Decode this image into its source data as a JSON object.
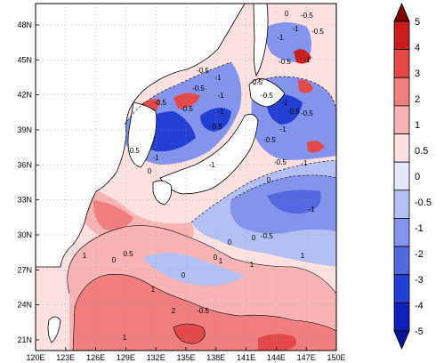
{
  "map": {
    "x_ticks": [
      "120E",
      "123E",
      "126E",
      "129E",
      "132E",
      "135E",
      "138E",
      "141E",
      "144E",
      "147E",
      "150E"
    ],
    "y_ticks": [
      "21N",
      "24N",
      "27N",
      "30N",
      "33N",
      "36N",
      "39N",
      "42N",
      "45N",
      "48N"
    ],
    "colorbar": {
      "levels": [
        "5",
        "4",
        "3",
        "2",
        "1",
        "0.5",
        "0",
        "-0.5",
        "-1",
        "-2",
        "-3",
        "-4",
        "-5"
      ],
      "colors": [
        "#800000",
        "#c81e1e",
        "#e44848",
        "#f07e7e",
        "#f8b4b4",
        "#fde0e0",
        "#e4e8fc",
        "#b4c0f4",
        "#8494ec",
        "#5468e0",
        "#2440d4",
        "#1020b8",
        "#0a1496"
      ]
    },
    "contour_labels": [
      {
        "text": "0"
      },
      {
        "text": "-0.5"
      },
      {
        "text": "-1"
      },
      {
        "text": "-0.5"
      },
      {
        "text": "-1"
      },
      {
        "text": "-0.5"
      },
      {
        "text": "-1"
      },
      {
        "text": "-0.5"
      },
      {
        "text": "-1"
      },
      {
        "text": "-0.5"
      },
      {
        "text": "-0.5"
      },
      {
        "text": "-1"
      },
      {
        "text": "-0.5"
      },
      {
        "text": "-0.5"
      },
      {
        "text": "-1"
      },
      {
        "text": "-0.5"
      },
      {
        "text": "-1"
      },
      {
        "text": "-0.5"
      },
      {
        "text": "-0.5"
      },
      {
        "text": "-1"
      },
      {
        "text": "-0.5"
      },
      {
        "text": "-1"
      },
      {
        "text": "0"
      },
      {
        "text": "-0.5"
      },
      {
        "text": "-0.5"
      },
      {
        "text": "-0.5"
      },
      {
        "text": "-1"
      },
      {
        "text": "0.5"
      },
      {
        "text": "1"
      },
      {
        "text": "0"
      },
      {
        "text": "1"
      },
      {
        "text": "0"
      },
      {
        "text": "0"
      },
      {
        "text": "1"
      },
      {
        "text": "1"
      },
      {
        "text": "2"
      },
      {
        "text": "1"
      },
      {
        "text": "-0.5"
      },
      {
        "text": "0"
      },
      {
        "text": "0"
      },
      {
        "text": "1"
      },
      {
        "text": "-1"
      },
      {
        "text": "0"
      },
      {
        "text": "-0.5"
      },
      {
        "text": "-1"
      }
    ]
  }
}
